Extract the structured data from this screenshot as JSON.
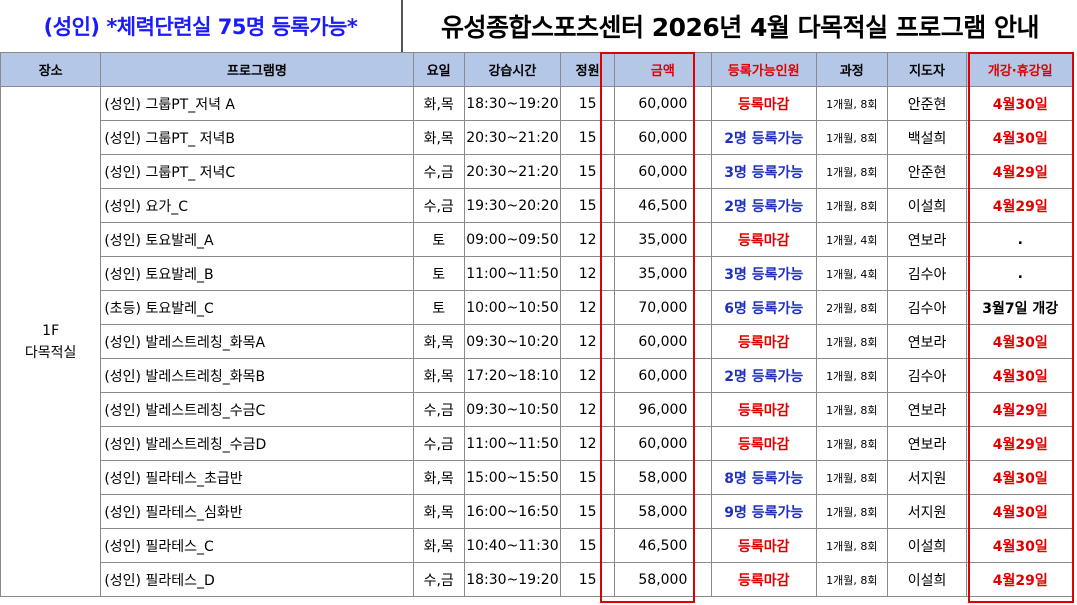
{
  "banner": {
    "left": "(성인) *체력단련실 75명 등록가능*",
    "right": "유성종합스포츠센터 2026년 4월 다목적실 프로그램 안내"
  },
  "headers": {
    "place": "장소",
    "program": "프로그램명",
    "day": "요일",
    "time": "강습시간",
    "capacity": "정원",
    "price": "금액",
    "available": "등록가능인원",
    "course": "과정",
    "instructor": "지도자",
    "schedule": "개강·휴강일"
  },
  "place": {
    "line1": "1F",
    "line2": "다목적실"
  },
  "colors": {
    "header_bg": "#b4c7e7",
    "accent_red": "#e00000",
    "available_blue": "#1f2fbf",
    "banner_blue": "#1a1aff"
  },
  "rows": [
    {
      "program": "(성인) 그룹PT_저녁 A",
      "day": "화,목",
      "time": "18:30~19:20",
      "capacity": "15",
      "price": "60,000",
      "available": "등록마감",
      "course": "1개월, 8회",
      "instructor": "안준현",
      "schedule": "4월30일"
    },
    {
      "program": "(성인) 그룹PT_ 저녁B",
      "day": "화,목",
      "time": "20:30~21:20",
      "capacity": "15",
      "price": "60,000",
      "available": "2명 등록가능",
      "course": "1개월, 8회",
      "instructor": "백설희",
      "schedule": "4월30일"
    },
    {
      "program": "(성인) 그룹PT_ 저녁C",
      "day": "수,금",
      "time": "20:30~21:20",
      "capacity": "15",
      "price": "60,000",
      "available": "3명 등록가능",
      "course": "1개월, 8회",
      "instructor": "안준현",
      "schedule": "4월29일"
    },
    {
      "program": "(성인) 요가_C",
      "day": "수,금",
      "time": "19:30~20:20",
      "capacity": "15",
      "price": "46,500",
      "available": "2명 등록가능",
      "course": "1개월, 8회",
      "instructor": "이설희",
      "schedule": "4월29일"
    },
    {
      "program": "(성인) 토요발레_A",
      "day": "토",
      "time": "09:00~09:50",
      "capacity": "12",
      "price": "35,000",
      "available": "등록마감",
      "course": "1개월, 4회",
      "instructor": "연보라",
      "schedule": "."
    },
    {
      "program": "(성인) 토요발레_B",
      "day": "토",
      "time": "11:00~11:50",
      "capacity": "12",
      "price": "35,000",
      "available": "3명 등록가능",
      "course": "1개월, 4회",
      "instructor": "김수아",
      "schedule": "."
    },
    {
      "program": "(초등) 토요발레_C",
      "day": "토",
      "time": "10:00~10:50",
      "capacity": "12",
      "price": "70,000",
      "available": "6명 등록가능",
      "course": "2개월, 8회",
      "instructor": "김수아",
      "schedule": "3월7일 개강"
    },
    {
      "program": "(성인) 발레스트레칭_화목A",
      "day": "화,목",
      "time": "09:30~10:20",
      "capacity": "12",
      "price": "60,000",
      "available": "등록마감",
      "course": "1개월, 8회",
      "instructor": "연보라",
      "schedule": "4월30일"
    },
    {
      "program": "(성인) 발레스트레칭_화목B",
      "day": "화,목",
      "time": "17:20~18:10",
      "capacity": "12",
      "price": "60,000",
      "available": "2명 등록가능",
      "course": "1개월, 8회",
      "instructor": "김수아",
      "schedule": "4월30일"
    },
    {
      "program": "(성인) 발레스트레칭_수금C",
      "day": "수,금",
      "time": "09:30~10:50",
      "capacity": "12",
      "price": "96,000",
      "available": "등록마감",
      "course": "1개월, 8회",
      "instructor": "연보라",
      "schedule": "4월29일"
    },
    {
      "program": "(성인) 발레스트레칭_수금D",
      "day": "수,금",
      "time": "11:00~11:50",
      "capacity": "12",
      "price": "60,000",
      "available": "등록마감",
      "course": "1개월, 8회",
      "instructor": "연보라",
      "schedule": "4월29일"
    },
    {
      "program": "(성인) 필라테스_초급반",
      "day": "화,목",
      "time": "15:00~15:50",
      "capacity": "15",
      "price": "58,000",
      "available": "8명 등록가능",
      "course": "1개월, 8회",
      "instructor": "서지원",
      "schedule": "4월30일"
    },
    {
      "program": "(성인) 필라테스_심화반",
      "day": "화,목",
      "time": "16:00~16:50",
      "capacity": "15",
      "price": "58,000",
      "available": "9명 등록가능",
      "course": "1개월, 8회",
      "instructor": "서지원",
      "schedule": "4월30일"
    },
    {
      "program": "(성인) 필라테스_C",
      "day": "화,목",
      "time": "10:40~11:30",
      "capacity": "15",
      "price": "46,500",
      "available": "등록마감",
      "course": "1개월, 8회",
      "instructor": "이설희",
      "schedule": "4월30일"
    },
    {
      "program": "(성인) 필라테스_D",
      "day": "수,금",
      "time": "18:30~19:20",
      "capacity": "15",
      "price": "58,000",
      "available": "등록마감",
      "course": "1개월, 8회",
      "instructor": "이설희",
      "schedule": "4월29일"
    }
  ]
}
